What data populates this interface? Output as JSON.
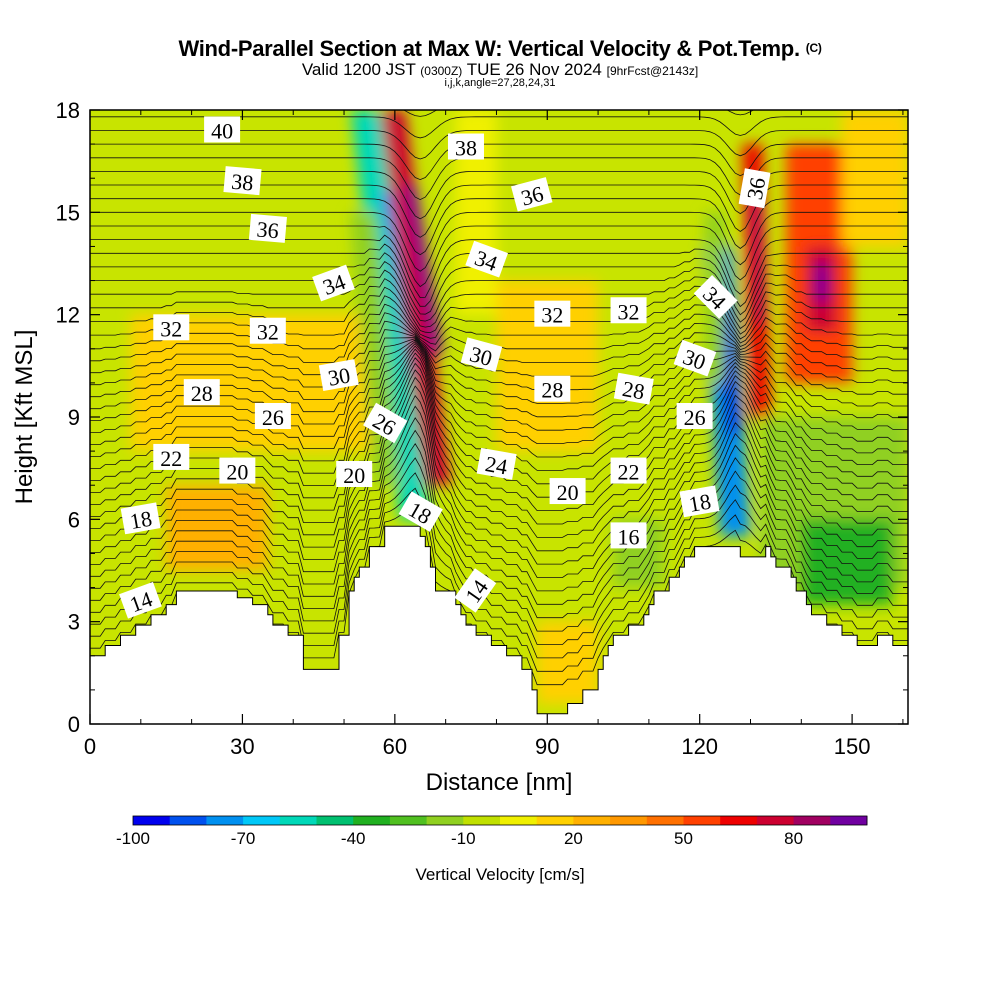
{
  "header": {
    "title": "Wind-Parallel Section at Max W: Vertical Velocity & Pot.Temp.",
    "title_mark": "(C)",
    "valid_prefix": "Valid 1200 JST",
    "valid_utc": "(0300Z)",
    "valid_date": "TUE 26 Nov 2024",
    "forecast_tag": "[9hrFcst@2143z]",
    "params": "i,j,k,angle=27,28,24,31"
  },
  "chart_data": {
    "type": "heatmap",
    "xlabel": "Distance [nm]",
    "ylabel": "Height [Kft MSL]",
    "xlim": [
      0,
      161
    ],
    "ylim": [
      0,
      18
    ],
    "x_ticks": [
      0,
      30,
      60,
      90,
      120,
      150
    ],
    "y_ticks": [
      0,
      3,
      6,
      9,
      12,
      15,
      18
    ],
    "grid": false,
    "shaded_field": {
      "name": "Vertical Velocity [cm/s]",
      "levels": [
        -100,
        -90,
        -80,
        -70,
        -60,
        -50,
        -40,
        -30,
        -20,
        -10,
        0,
        10,
        20,
        30,
        40,
        50,
        60,
        70,
        80,
        90,
        100
      ],
      "colorbar_tick_labels": [
        "-100",
        "-70",
        "-40",
        "-10",
        "20",
        "50",
        "80"
      ],
      "colors": [
        "#0000ee",
        "#0050ee",
        "#0090f0",
        "#00c8f8",
        "#00d8b8",
        "#00c070",
        "#20b020",
        "#50c020",
        "#90d020",
        "#c0e000",
        "#f0f000",
        "#ffd000",
        "#ffb000",
        "#ff9800",
        "#ff7000",
        "#ff4000",
        "#ee0000",
        "#cc0030",
        "#a00060",
        "#7000a0"
      ],
      "background": "#c8e400",
      "cells": [
        {
          "x": [
            61,
            67
          ],
          "y": [
            6,
            18
          ],
          "value": -60,
          "tilt": -0.8
        },
        {
          "x": [
            66,
            71
          ],
          "y": [
            7,
            18
          ],
          "value": 70,
          "tilt": -0.8
        },
        {
          "x": [
            124,
            130
          ],
          "y": [
            5.5,
            14
          ],
          "value": -80,
          "tilt": -0.4
        },
        {
          "x": [
            130,
            134
          ],
          "y": [
            9,
            17
          ],
          "value": 60,
          "tilt": -0.2
        },
        {
          "x": [
            137,
            150
          ],
          "y": [
            10,
            17
          ],
          "value": 50,
          "tilt": 0
        },
        {
          "x": [
            141,
            147
          ],
          "y": [
            11.5,
            14
          ],
          "value": 70,
          "tilt": 0
        },
        {
          "x": [
            8,
            55
          ],
          "y": [
            8,
            12
          ],
          "value": 10,
          "tilt": 0
        },
        {
          "x": [
            15,
            35
          ],
          "y": [
            4.5,
            7
          ],
          "value": 20,
          "tilt": 0
        },
        {
          "x": [
            80,
            100
          ],
          "y": [
            8,
            13
          ],
          "value": 10,
          "tilt": 0
        },
        {
          "x": [
            72,
            80
          ],
          "y": [
            12,
            18
          ],
          "value": 0,
          "tilt": 0
        },
        {
          "x": [
            132,
            161
          ],
          "y": [
            4,
            9
          ],
          "value": -20,
          "tilt": 0
        },
        {
          "x": [
            140,
            158
          ],
          "y": [
            3.5,
            6
          ],
          "value": -40,
          "tilt": 0
        },
        {
          "x": [
            103,
            113
          ],
          "y": [
            4,
            6
          ],
          "value": -20,
          "tilt": 0
        },
        {
          "x": [
            56,
            61
          ],
          "y": [
            7,
            15
          ],
          "value": -20,
          "tilt": -0.6
        },
        {
          "x": [
            121,
            125
          ],
          "y": [
            10,
            15
          ],
          "value": -20,
          "tilt": 0
        },
        {
          "x": [
            88,
            100
          ],
          "y": [
            0.6,
            3
          ],
          "value": 10,
          "tilt": 0
        },
        {
          "x": [
            148,
            161
          ],
          "y": [
            14,
            18
          ],
          "value": 10,
          "tilt": 0
        }
      ]
    },
    "contour_field": {
      "name": "Potential Temperature",
      "interval": 1,
      "labels": [
        {
          "text": "40",
          "x": 26,
          "y": 17.4,
          "angle": 0
        },
        {
          "text": "38",
          "x": 30,
          "y": 15.9,
          "angle": 5
        },
        {
          "text": "36",
          "x": 35,
          "y": 14.5,
          "angle": 5
        },
        {
          "text": "34",
          "x": 48,
          "y": 12.9,
          "angle": -20
        },
        {
          "text": "32",
          "x": 16,
          "y": 11.6,
          "angle": 0
        },
        {
          "text": "32",
          "x": 35,
          "y": 11.5,
          "angle": 0
        },
        {
          "text": "30",
          "x": 49,
          "y": 10.2,
          "angle": -10
        },
        {
          "text": "28",
          "x": 22,
          "y": 9.7,
          "angle": 0
        },
        {
          "text": "26",
          "x": 36,
          "y": 9.0,
          "angle": 0
        },
        {
          "text": "26",
          "x": 58,
          "y": 8.8,
          "angle": 30
        },
        {
          "text": "22",
          "x": 16,
          "y": 7.8,
          "angle": 0
        },
        {
          "text": "20",
          "x": 29,
          "y": 7.4,
          "angle": 0
        },
        {
          "text": "20",
          "x": 52,
          "y": 7.3,
          "angle": 0
        },
        {
          "text": "18",
          "x": 10,
          "y": 6.0,
          "angle": -10
        },
        {
          "text": "18",
          "x": 65,
          "y": 6.2,
          "angle": 30
        },
        {
          "text": "14",
          "x": 10,
          "y": 3.6,
          "angle": -20
        },
        {
          "text": "14",
          "x": 76,
          "y": 3.9,
          "angle": -55
        },
        {
          "text": "38",
          "x": 74,
          "y": 16.9,
          "angle": 0
        },
        {
          "text": "36",
          "x": 87,
          "y": 15.5,
          "angle": -15
        },
        {
          "text": "34",
          "x": 78,
          "y": 13.6,
          "angle": 20
        },
        {
          "text": "32",
          "x": 91,
          "y": 12.0,
          "angle": 0
        },
        {
          "text": "30",
          "x": 77,
          "y": 10.8,
          "angle": 15
        },
        {
          "text": "28",
          "x": 91,
          "y": 9.8,
          "angle": 0
        },
        {
          "text": "24",
          "x": 80,
          "y": 7.6,
          "angle": 10
        },
        {
          "text": "20",
          "x": 94,
          "y": 6.8,
          "angle": 0
        },
        {
          "text": "16",
          "x": 106,
          "y": 5.5,
          "angle": 0
        },
        {
          "text": "32",
          "x": 106,
          "y": 12.1,
          "angle": 0
        },
        {
          "text": "28",
          "x": 107,
          "y": 9.8,
          "angle": 10
        },
        {
          "text": "22",
          "x": 106,
          "y": 7.4,
          "angle": 0
        },
        {
          "text": "36",
          "x": 131,
          "y": 15.7,
          "angle": -80
        },
        {
          "text": "34",
          "x": 123,
          "y": 12.5,
          "angle": 45
        },
        {
          "text": "30",
          "x": 119,
          "y": 10.7,
          "angle": 20
        },
        {
          "text": "26",
          "x": 119,
          "y": 9.0,
          "angle": 0
        },
        {
          "text": "18",
          "x": 120,
          "y": 6.5,
          "angle": -10
        }
      ]
    },
    "terrain": [
      [
        0,
        2.0
      ],
      [
        3,
        2.0
      ],
      [
        3,
        2.3
      ],
      [
        6,
        2.3
      ],
      [
        6,
        2.6
      ],
      [
        9,
        2.6
      ],
      [
        9,
        2.9
      ],
      [
        12,
        2.9
      ],
      [
        12,
        3.2
      ],
      [
        15,
        3.2
      ],
      [
        15,
        3.5
      ],
      [
        17,
        3.5
      ],
      [
        17,
        3.9
      ],
      [
        29,
        3.9
      ],
      [
        29,
        3.7
      ],
      [
        32,
        3.7
      ],
      [
        32,
        3.5
      ],
      [
        35,
        3.5
      ],
      [
        35,
        3.2
      ],
      [
        36,
        3.2
      ],
      [
        36,
        2.9
      ],
      [
        39,
        2.9
      ],
      [
        39,
        2.6
      ],
      [
        42,
        2.6
      ],
      [
        42,
        2.3
      ],
      [
        42,
        1.6
      ],
      [
        49,
        1.6
      ],
      [
        49,
        2.3
      ],
      [
        49,
        2.6
      ],
      [
        51,
        2.6
      ],
      [
        51,
        2.9
      ],
      [
        51,
        3.9
      ],
      [
        52,
        3.9
      ],
      [
        52,
        4.3
      ],
      [
        53,
        4.3
      ],
      [
        53,
        4.6
      ],
      [
        55,
        4.6
      ],
      [
        55,
        5.2
      ],
      [
        56,
        5.2
      ],
      [
        56,
        5.2
      ],
      [
        58,
        5.2
      ],
      [
        58,
        5.8
      ],
      [
        65,
        5.8
      ],
      [
        65,
        5.5
      ],
      [
        66,
        5.5
      ],
      [
        66,
        5.2
      ],
      [
        67,
        5.2
      ],
      [
        67,
        4.6
      ],
      [
        68,
        4.6
      ],
      [
        68,
        3.9
      ],
      [
        72,
        3.9
      ],
      [
        72,
        3.5
      ],
      [
        73,
        3.5
      ],
      [
        73,
        3.2
      ],
      [
        74,
        3.2
      ],
      [
        74,
        2.9
      ],
      [
        76,
        2.9
      ],
      [
        76,
        2.6
      ],
      [
        79,
        2.6
      ],
      [
        79,
        2.3
      ],
      [
        82,
        2.3
      ],
      [
        82,
        2.0
      ],
      [
        85,
        2.0
      ],
      [
        85,
        1.6
      ],
      [
        87,
        1.6
      ],
      [
        87,
        1.0
      ],
      [
        88,
        1.0
      ],
      [
        88,
        0.3
      ],
      [
        94,
        0.3
      ],
      [
        94,
        0.6
      ],
      [
        97,
        0.6
      ],
      [
        97,
        1.0
      ],
      [
        100,
        1.0
      ],
      [
        100,
        1.6
      ],
      [
        101,
        1.6
      ],
      [
        101,
        2.0
      ],
      [
        102,
        2.0
      ],
      [
        102,
        2.3
      ],
      [
        103,
        2.3
      ],
      [
        103,
        2.6
      ],
      [
        106,
        2.6
      ],
      [
        106,
        2.9
      ],
      [
        109,
        2.9
      ],
      [
        109,
        3.2
      ],
      [
        110,
        3.2
      ],
      [
        110,
        3.5
      ],
      [
        111,
        3.5
      ],
      [
        111,
        3.9
      ],
      [
        114,
        3.9
      ],
      [
        114,
        4.3
      ],
      [
        116,
        4.3
      ],
      [
        116,
        4.6
      ],
      [
        117,
        4.6
      ],
      [
        117,
        4.9
      ],
      [
        119,
        4.9
      ],
      [
        119,
        5.2
      ],
      [
        128,
        5.2
      ],
      [
        128,
        4.9
      ],
      [
        133,
        4.9
      ],
      [
        133,
        5.2
      ],
      [
        134,
        5.2
      ],
      [
        134,
        4.9
      ],
      [
        135,
        4.9
      ],
      [
        135,
        4.6
      ],
      [
        138,
        4.6
      ],
      [
        138,
        4.3
      ],
      [
        139,
        4.3
      ],
      [
        139,
        3.9
      ],
      [
        141,
        3.9
      ],
      [
        141,
        3.5
      ],
      [
        142,
        3.5
      ],
      [
        142,
        3.2
      ],
      [
        145,
        3.2
      ],
      [
        145,
        2.9
      ],
      [
        148,
        2.9
      ],
      [
        148,
        2.6
      ],
      [
        151,
        2.6
      ],
      [
        151,
        2.3
      ],
      [
        155,
        2.3
      ],
      [
        155,
        2.6
      ],
      [
        158,
        2.6
      ],
      [
        158,
        2.3
      ],
      [
        161,
        2.3
      ]
    ]
  }
}
